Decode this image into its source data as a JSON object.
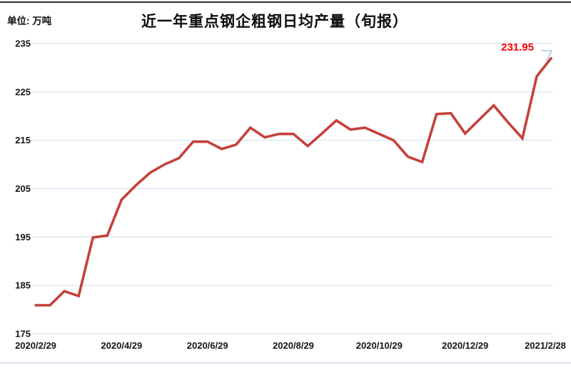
{
  "page": {
    "unit_label": "单位: 万吨",
    "title": "近一年重点钢企粗钢日均产量（旬报）"
  },
  "chart_data": {
    "type": "line",
    "title": "近一年重点钢企粗钢日均产量（旬报）",
    "unit": "万吨",
    "series_name": "重点钢企粗钢日均产量",
    "x_tick_labels": [
      "2020/2/29",
      "2020/4/29",
      "2020/6/29",
      "2020/8/29",
      "2020/10/29",
      "2020/12/29",
      "2021/2/28"
    ],
    "x_ticks_every_n_points": 6,
    "y_ticks": [
      175,
      185,
      195,
      205,
      215,
      225,
      235
    ],
    "ylim": [
      175,
      235
    ],
    "grid": "horizontal",
    "legend_position": "none",
    "values": [
      180.9,
      180.9,
      183.8,
      182.8,
      194.9,
      195.3,
      202.7,
      205.7,
      208.3,
      210.0,
      211.3,
      214.7,
      214.7,
      213.2,
      214.1,
      217.6,
      215.6,
      216.3,
      216.3,
      213.8,
      216.4,
      219.1,
      217.2,
      217.6,
      216.3,
      215.0,
      211.6,
      210.5,
      220.4,
      220.6,
      216.4,
      219.3,
      222.2,
      218.7,
      215.4,
      228.2,
      231.95
    ],
    "end_point_label": "231.95",
    "colors": {
      "line": "#c4423b",
      "end_label": "#fe0000",
      "gridline": "#dce6f3",
      "end_marker": "#a9c6e3",
      "tick_text": "#161616"
    }
  }
}
